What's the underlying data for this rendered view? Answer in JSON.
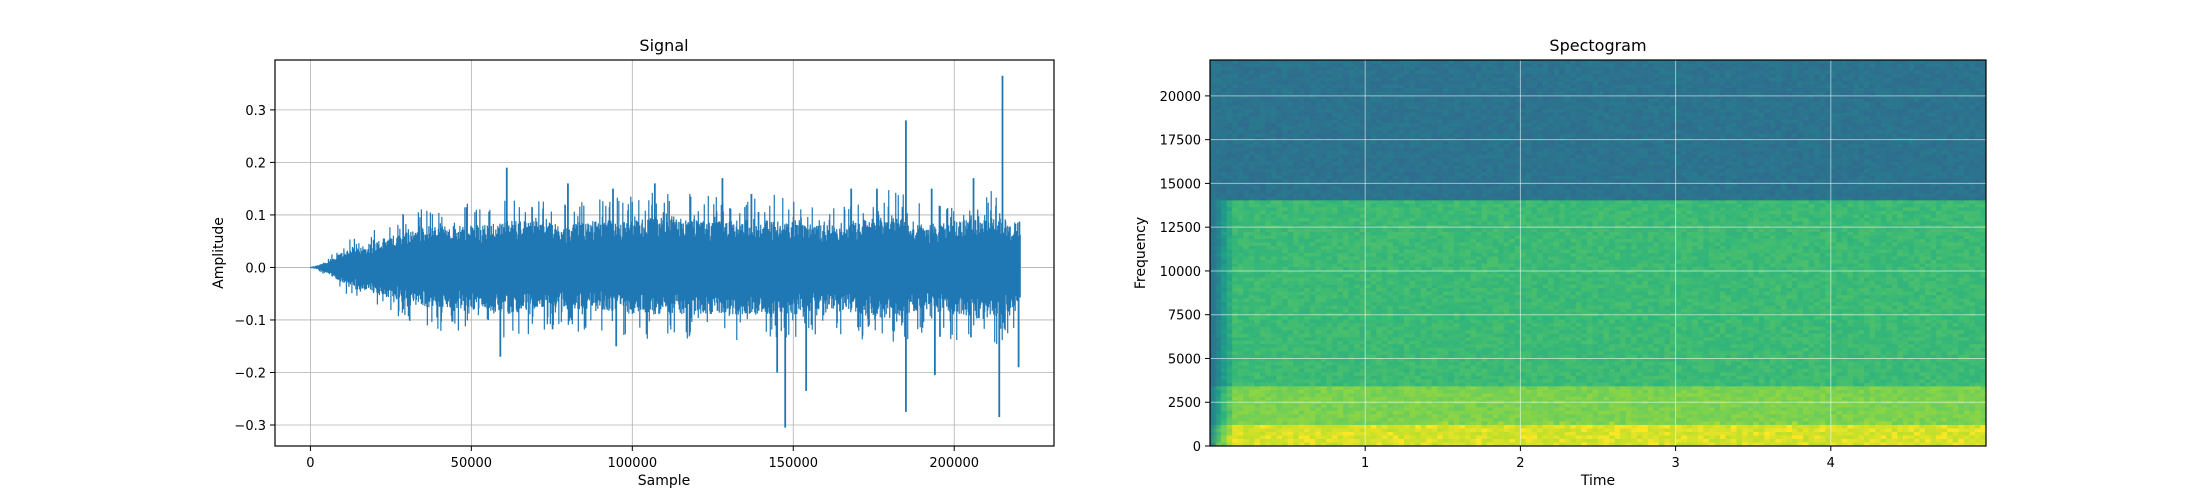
{
  "chart_data": [
    {
      "type": "line",
      "title": "Signal",
      "xlabel": "Sample",
      "ylabel": "Amplitude",
      "xlim": [
        -11000,
        231000
      ],
      "ylim": [
        -0.34,
        0.395
      ],
      "grid": true,
      "x_ticks": [
        0,
        50000,
        100000,
        150000,
        200000
      ],
      "x_tick_labels": [
        "0",
        "50000",
        "100000",
        "150000",
        "200000"
      ],
      "y_ticks": [
        -0.3,
        -0.2,
        -0.1,
        0.0,
        0.1,
        0.2,
        0.3
      ],
      "y_tick_labels": [
        "−0.3",
        "−0.2",
        "−0.1",
        "0.0",
        "0.1",
        "0.2",
        "0.3"
      ],
      "color": "#1f77b4",
      "series": [
        {
          "envelope": {
            "x": [
              0,
              5000,
              10000,
              20000,
              30000,
              40000,
              50000,
              60000,
              70000,
              80000,
              90000,
              100000,
              110000,
              120000,
              130000,
              140000,
              150000,
              160000,
              170000,
              180000,
              190000,
              200000,
              210000,
              220500
            ],
            "max": [
              0.0,
              0.01,
              0.03,
              0.05,
              0.07,
              0.08,
              0.08,
              0.09,
              0.09,
              0.08,
              0.09,
              0.09,
              0.1,
              0.09,
              0.09,
              0.09,
              0.09,
              0.08,
              0.09,
              0.1,
              0.08,
              0.09,
              0.1,
              0.07
            ],
            "min": [
              0.0,
              -0.01,
              -0.03,
              -0.05,
              -0.07,
              -0.08,
              -0.08,
              -0.09,
              -0.08,
              -0.08,
              -0.08,
              -0.09,
              -0.09,
              -0.09,
              -0.09,
              -0.09,
              -0.09,
              -0.08,
              -0.09,
              -0.1,
              -0.08,
              -0.09,
              -0.1,
              -0.08
            ]
          },
          "peaks": [
            {
              "x": 61000,
              "y": 0.19
            },
            {
              "x": 80000,
              "y": 0.16
            },
            {
              "x": 94000,
              "y": 0.15
            },
            {
              "x": 107000,
              "y": 0.16
            },
            {
              "x": 128000,
              "y": 0.17
            },
            {
              "x": 137000,
              "y": 0.14
            },
            {
              "x": 168000,
              "y": 0.15
            },
            {
              "x": 176000,
              "y": 0.15
            },
            {
              "x": 185000,
              "y": 0.28
            },
            {
              "x": 193000,
              "y": 0.15
            },
            {
              "x": 206000,
              "y": 0.17
            },
            {
              "x": 215000,
              "y": 0.365
            },
            {
              "x": 59000,
              "y": -0.17
            },
            {
              "x": 95000,
              "y": -0.15
            },
            {
              "x": 145000,
              "y": -0.2
            },
            {
              "x": 147500,
              "y": -0.305
            },
            {
              "x": 154000,
              "y": -0.235
            },
            {
              "x": 185000,
              "y": -0.275
            },
            {
              "x": 194000,
              "y": -0.205
            },
            {
              "x": 214000,
              "y": -0.285
            },
            {
              "x": 220000,
              "y": -0.19
            }
          ]
        }
      ]
    },
    {
      "type": "heatmap",
      "title": "Spectogram",
      "xlabel": "Time",
      "ylabel": "Frequency",
      "xlim": [
        0.0,
        5.0
      ],
      "ylim": [
        0,
        22050
      ],
      "grid": true,
      "x_ticks": [
        1,
        2,
        3,
        4
      ],
      "x_tick_labels": [
        "1",
        "2",
        "3",
        "4"
      ],
      "y_ticks": [
        0,
        2500,
        5000,
        7500,
        10000,
        12500,
        15000,
        17500,
        20000
      ],
      "y_tick_labels": [
        "0",
        "2500",
        "5000",
        "7500",
        "10000",
        "12500",
        "15000",
        "17500",
        "20000"
      ],
      "colormap": "viridis",
      "bands": [
        {
          "freq_from": 14000,
          "freq_to": 22050,
          "level": 0.38
        },
        {
          "freq_from": 3500,
          "freq_to": 14000,
          "level": 0.68
        },
        {
          "freq_from": 1200,
          "freq_to": 3500,
          "level": 0.8
        },
        {
          "freq_from": 0,
          "freq_to": 1200,
          "level": 0.93
        }
      ]
    }
  ]
}
